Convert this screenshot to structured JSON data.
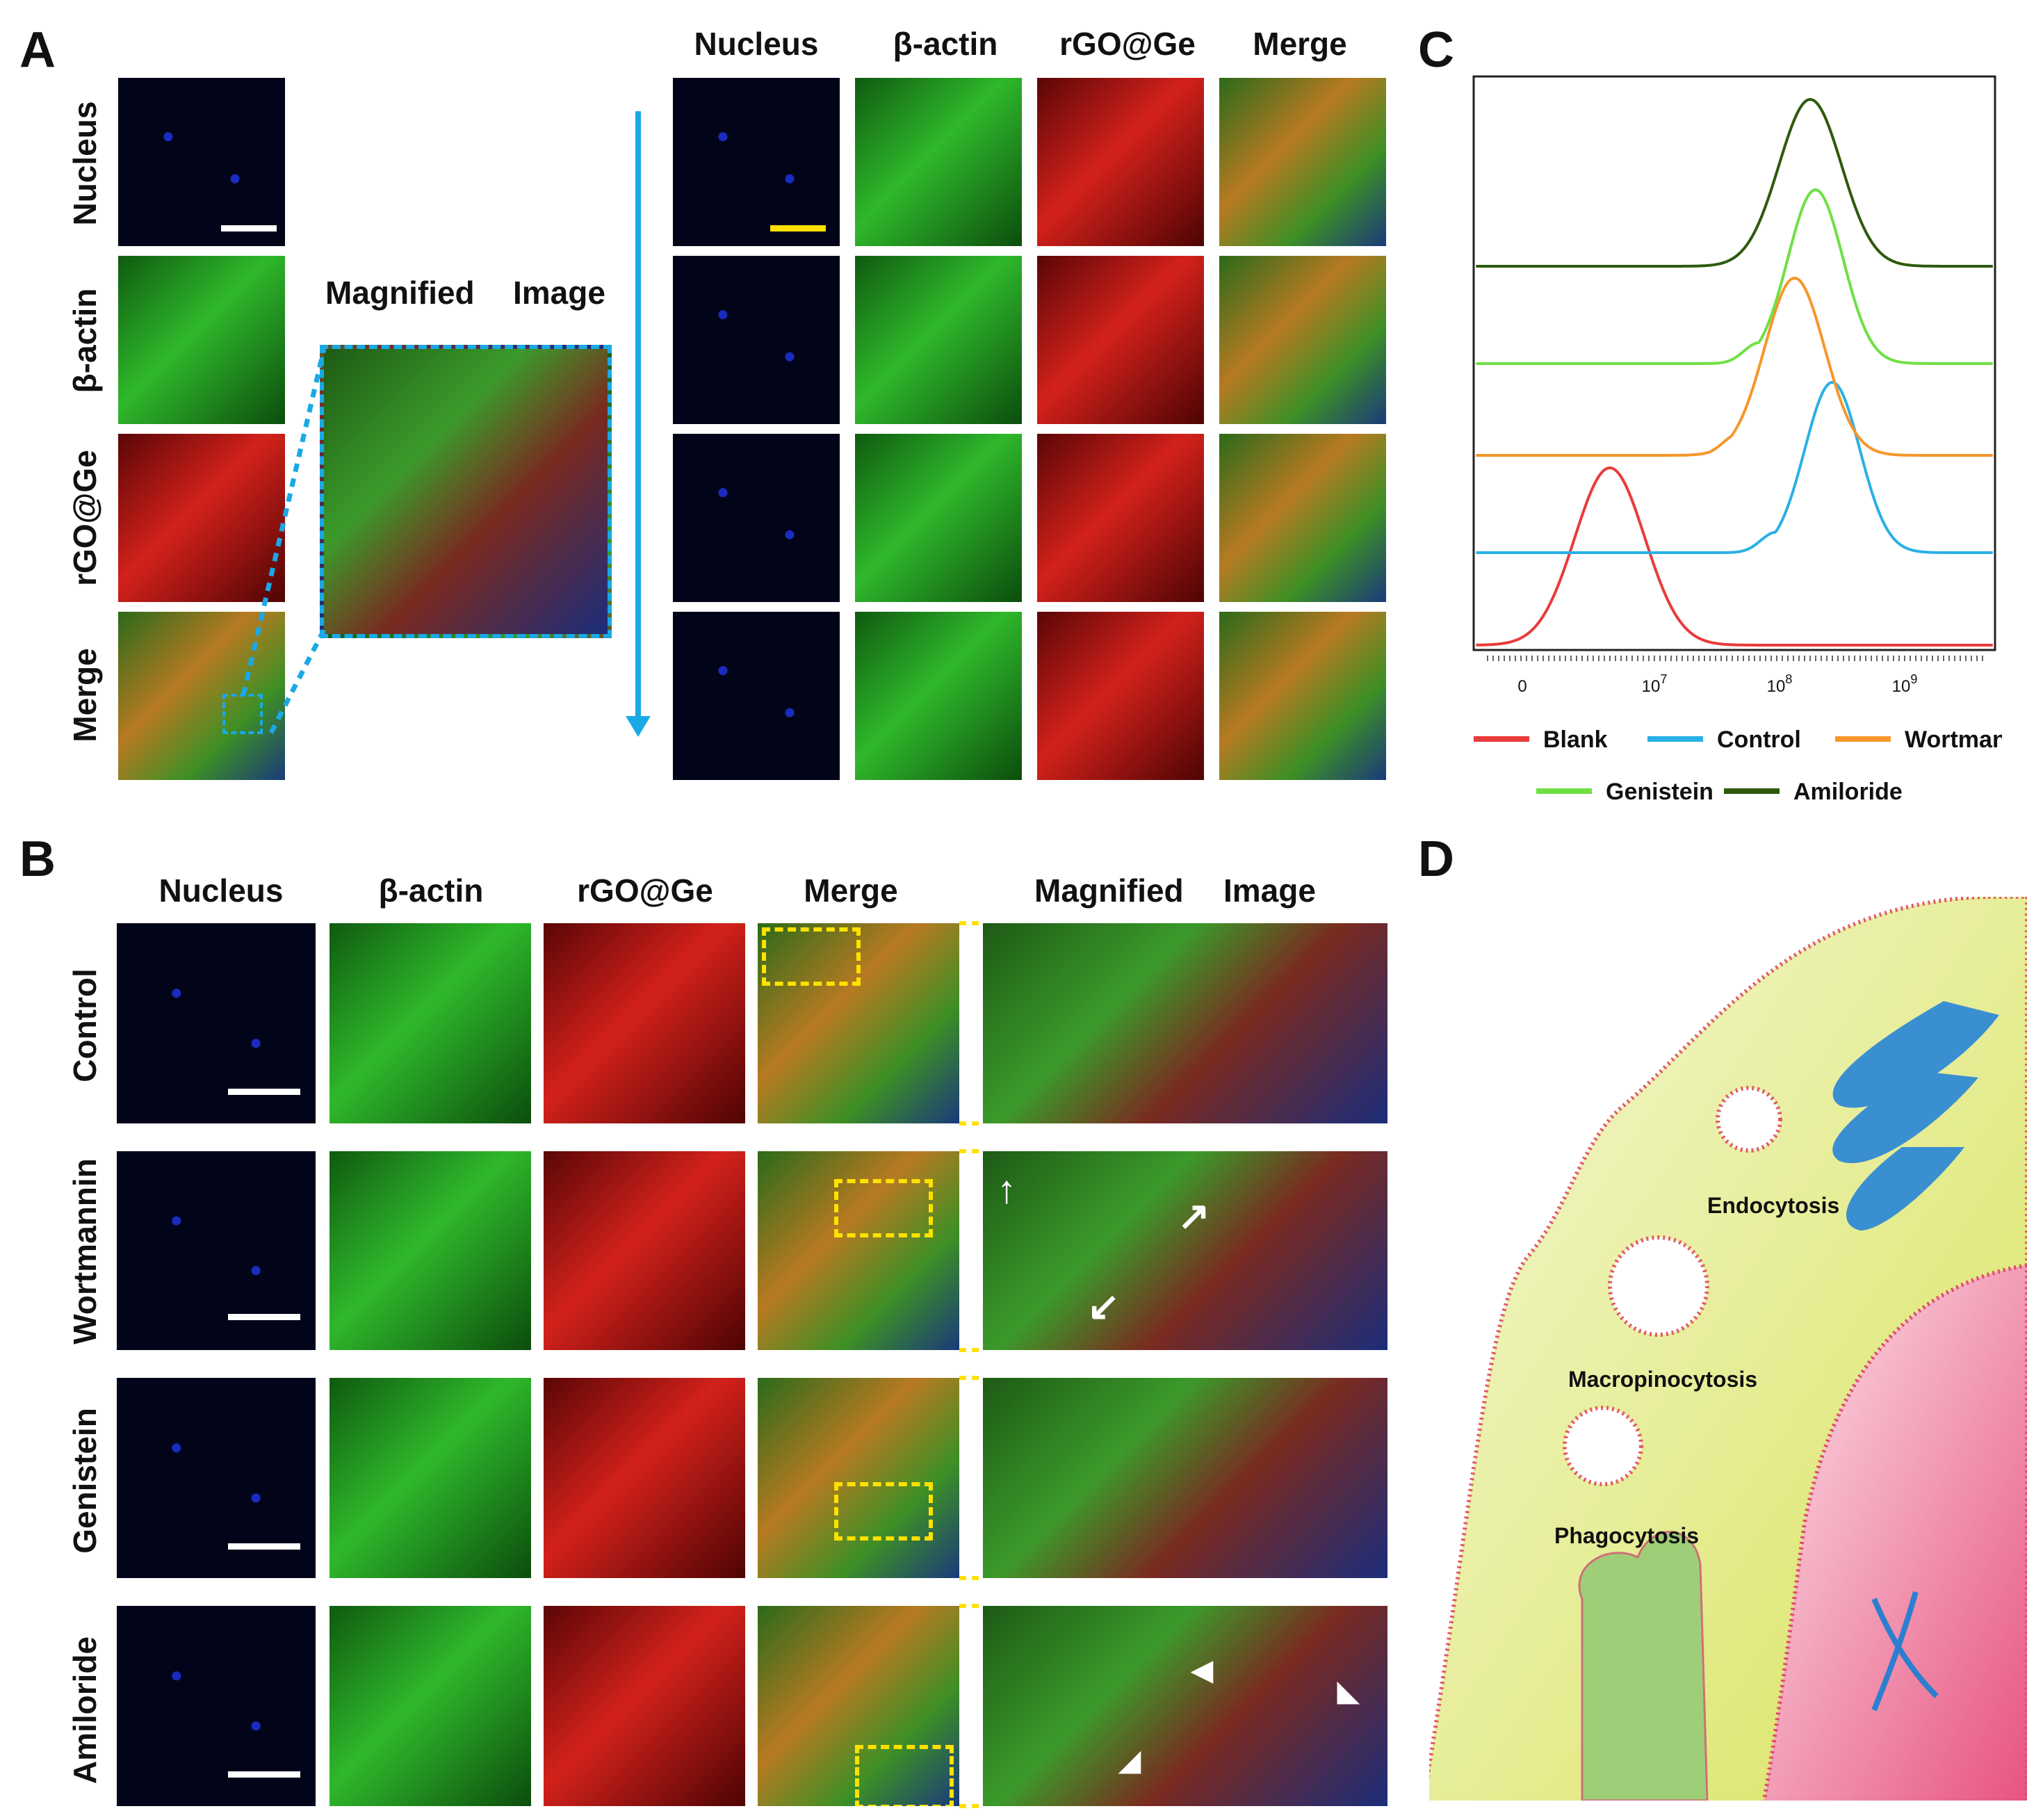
{
  "panels": {
    "a": "A",
    "b": "B",
    "c": "C",
    "d": "D"
  },
  "panel_a": {
    "row_labels": [
      "Nucleus",
      "β-actin",
      "rGO@Ge",
      "Merge"
    ],
    "magnified_label_1": "Magnified",
    "magnified_label_2": "Image",
    "column_headers": [
      "Nucleus",
      "β-actin",
      "rGO@Ge",
      "Merge"
    ]
  },
  "panel_b": {
    "column_headers": [
      "Nucleus",
      "β-actin",
      "rGO@Ge",
      "Merge"
    ],
    "magnified_label_1": "Magnified",
    "magnified_label_2": "Image",
    "row_labels": [
      "Control",
      "Wortmannin",
      "Genistein",
      "Amiloride"
    ]
  },
  "panel_c": {
    "x_tick_labels": [
      "0",
      "10",
      "10",
      "10"
    ],
    "x_tick_exponents": [
      "",
      "7",
      "8",
      "9"
    ],
    "legend": [
      "Blank",
      "Control",
      "Wortmannin",
      "Genistein",
      "Amiloride"
    ],
    "colors": {
      "Blank": "#e83b3b",
      "Control": "#2ab0e6",
      "Wortmannin": "#f7962a",
      "Genistein": "#6fe044",
      "Amiloride": "#2e5a0e"
    }
  },
  "chart_data": {
    "type": "line",
    "xlabel": "",
    "ylabel": "",
    "xscale": "log",
    "x_ticks": [
      "0",
      "10^7",
      "10^8",
      "10^9"
    ],
    "series": [
      {
        "name": "Blank",
        "peak_x": 5000000.0,
        "color": "#e83b3b"
      },
      {
        "name": "Control",
        "peak_x": 300000000.0,
        "color": "#2ab0e6"
      },
      {
        "name": "Wortmannin",
        "peak_x": 150000000.0,
        "color": "#f7962a"
      },
      {
        "name": "Genistein",
        "peak_x": 220000000.0,
        "color": "#6fe044"
      },
      {
        "name": "Amiloride",
        "peak_x": 200000000.0,
        "color": "#2e5a0e"
      }
    ],
    "legend_position": "bottom"
  },
  "panel_d": {
    "labels": [
      "Endocytosis",
      "Macropinocytosis",
      "Phagocytosis"
    ]
  }
}
